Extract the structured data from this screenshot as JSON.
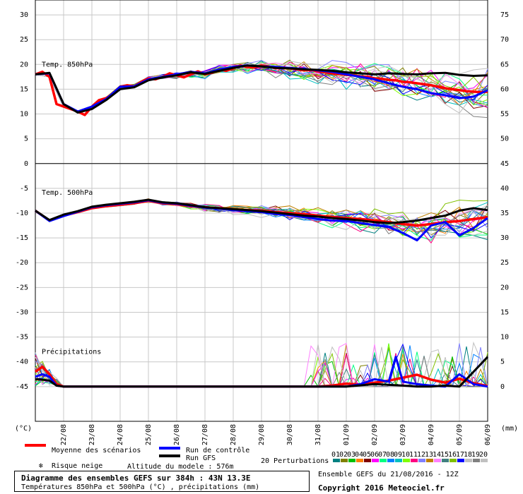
{
  "chart_data": {
    "type": "line",
    "title": "Diagramme des ensembles GEFS sur 384h : 43N 13.3E",
    "subtitle": "Températures 850hPa et 500hPa (°C) , précipitations (mm)",
    "x_tick_labels": [
      "22/08",
      "23/08",
      "24/08",
      "25/08",
      "26/08",
      "27/08",
      "28/08",
      "29/08",
      "30/08",
      "31/08",
      "01/09",
      "02/09",
      "03/09",
      "04/09",
      "05/09",
      "06/09"
    ],
    "x_range_days": [
      0,
      16
    ],
    "left_axis": {
      "unit_label": "(°C)",
      "ticks": [
        30,
        25,
        20,
        15,
        10,
        5,
        0,
        -5,
        -10,
        -15,
        -20,
        -25,
        -30,
        -35,
        -40,
        -45
      ],
      "range": [
        -52,
        33
      ]
    },
    "right_axis_850": {
      "ticks": [
        75,
        70,
        65,
        60,
        55,
        50
      ]
    },
    "right_axis_500": {
      "ticks": [
        45,
        40,
        35,
        30,
        25,
        20,
        15,
        10,
        5,
        0
      ]
    },
    "right_unit_label": "(mm)",
    "panels": [
      {
        "id": "t850",
        "label": "Temp. 850hPa",
        "range": [
          0,
          33
        ]
      },
      {
        "id": "t500",
        "label": "Temp. 500hPa",
        "range": [
          -33,
          0
        ]
      },
      {
        "id": "precip",
        "label": "Précipitations",
        "baseline": -45
      }
    ],
    "series": [
      {
        "name": "Moyenne des scénarios",
        "panel": "t850",
        "color": "#ff0000",
        "x": [
          0,
          0.25,
          0.5,
          0.75,
          1,
          1.25,
          1.5,
          1.75,
          2,
          2.25,
          2.5,
          2.75,
          3,
          3.25,
          3.5,
          3.75,
          4,
          4.25,
          4.5,
          4.75,
          5,
          5.25,
          5.5,
          5.75,
          6,
          6.25,
          6.5,
          6.75,
          7,
          7.25,
          7.5,
          7.75,
          8,
          8.25,
          8.5,
          8.75,
          9,
          9.25,
          9.5,
          9.75,
          10,
          10.25,
          10.5,
          10.75,
          11,
          11.25,
          11.5,
          11.75,
          12,
          12.25,
          12.5,
          12.75,
          13,
          13.25,
          13.5,
          13.75,
          14,
          14.25,
          14.5,
          14.75,
          15,
          15.25,
          15.5,
          15.75,
          16
        ],
        "y": [
          18,
          18.5,
          17.5,
          12,
          11.5,
          11,
          10.5,
          9.8,
          11.5,
          12.8,
          13.2,
          14,
          15.5,
          15.8,
          15.6,
          16.5,
          17.2,
          17,
          17.5,
          18.2,
          17.8,
          17.4,
          18,
          18.6,
          18,
          18.3,
          19,
          18.7,
          19.2,
          19.8,
          19.5,
          19.4,
          19.8,
          19.6,
          19.2,
          19.4,
          19.2,
          19,
          18.8,
          18.9,
          18.6,
          18.4,
          18.2,
          18.1,
          17.9,
          17.8,
          17.6,
          17.5,
          17.2,
          17.1,
          16.9,
          16.8,
          16.5,
          16.4,
          16.2,
          16,
          15.8,
          15.5,
          15.2,
          15,
          14.8,
          14.6,
          14.5,
          14.4,
          14.5
        ]
      },
      {
        "name": "Run de contrôle",
        "panel": "t850",
        "color": "#0000ff",
        "x": [
          0,
          0.5,
          1,
          1.5,
          2,
          2.5,
          3,
          3.5,
          4,
          4.5,
          5,
          5.5,
          6,
          6.5,
          7,
          7.5,
          8,
          8.5,
          9,
          9.5,
          10,
          10.5,
          11,
          11.5,
          12,
          12.5,
          13,
          13.5,
          14,
          14.5,
          15,
          15.5,
          16
        ],
        "y": [
          18,
          18.2,
          12,
          10.5,
          11.5,
          13,
          15.5,
          15.6,
          17,
          17.5,
          18,
          18.5,
          18.2,
          19,
          19.5,
          19.8,
          19.6,
          19.5,
          19.3,
          19.1,
          18.8,
          18.5,
          18,
          17.5,
          17,
          16.2,
          15.5,
          15,
          14.2,
          13.8,
          13.2,
          13.5,
          14.8
        ]
      },
      {
        "name": "Run GFS",
        "panel": "t850",
        "color": "#000000",
        "x": [
          0,
          0.5,
          1,
          1.5,
          2,
          2.5,
          3,
          3.5,
          4,
          4.5,
          5,
          5.5,
          6,
          6.5,
          7,
          7.5,
          8,
          8.5,
          9,
          9.5,
          10,
          10.5,
          11,
          11.5,
          12,
          12.5,
          13,
          13.5,
          14,
          14.5,
          15,
          15.5,
          16
        ],
        "y": [
          18,
          18.3,
          12,
          10.3,
          11,
          12.8,
          15,
          15.4,
          16.8,
          17.4,
          17.8,
          18.4,
          18.1,
          18.7,
          19.3,
          19.8,
          19.6,
          19.3,
          19.2,
          19,
          18.9,
          18.7,
          18.4,
          18.2,
          18,
          18.2,
          18.1,
          18,
          18.2,
          18.3,
          17.9,
          17.7,
          17.8
        ]
      },
      {
        "name": "Moyenne des scénarios 500",
        "panel": "t500",
        "color": "#ff0000",
        "x": [
          0,
          0.5,
          1,
          1.5,
          2,
          2.5,
          3,
          3.5,
          4,
          4.5,
          5,
          5.5,
          6,
          6.5,
          7,
          7.5,
          8,
          8.5,
          9,
          9.5,
          10,
          10.5,
          11,
          11.5,
          12,
          12.5,
          13,
          13.5,
          14,
          14.5,
          15,
          15.5,
          16
        ],
        "y": [
          -9.5,
          -11.5,
          -10.5,
          -9.8,
          -9,
          -8.6,
          -8.3,
          -8,
          -7.5,
          -8,
          -8.2,
          -8.6,
          -8.8,
          -9,
          -9.2,
          -9.4,
          -9.5,
          -9.8,
          -10,
          -10.2,
          -10.5,
          -10.8,
          -11,
          -11.2,
          -11.5,
          -11.8,
          -12.2,
          -12.5,
          -12.2,
          -11.8,
          -11.6,
          -11.2,
          -10.8
        ]
      },
      {
        "name": "Run de contrôle 500",
        "panel": "t500",
        "color": "#0000ff",
        "x": [
          0,
          0.5,
          1,
          1.5,
          2,
          2.5,
          3,
          3.5,
          4,
          4.5,
          5,
          5.5,
          6,
          6.5,
          7,
          7.5,
          8,
          8.5,
          9,
          9.5,
          10,
          10.5,
          11,
          11.5,
          12,
          12.5,
          13,
          13.5,
          14,
          14.5,
          15,
          15.5,
          16
        ],
        "y": [
          -9.5,
          -11.6,
          -10.6,
          -9.7,
          -8.8,
          -8.4,
          -8.1,
          -7.8,
          -7.4,
          -7.9,
          -8.1,
          -8.5,
          -8.9,
          -9.1,
          -9.4,
          -9.6,
          -9.8,
          -10.2,
          -10.4,
          -10.8,
          -11.2,
          -11.5,
          -11.6,
          -12,
          -12.4,
          -12.8,
          -14,
          -15.5,
          -12.5,
          -11.8,
          -14.5,
          -13,
          -11
        ]
      },
      {
        "name": "Run GFS 500",
        "panel": "t500",
        "color": "#000000",
        "x": [
          0,
          0.5,
          1,
          1.5,
          2,
          2.5,
          3,
          3.5,
          4,
          4.5,
          5,
          5.5,
          6,
          6.5,
          7,
          7.5,
          8,
          8.5,
          9,
          9.5,
          10,
          10.5,
          11,
          11.5,
          12,
          12.5,
          13,
          13.5,
          14,
          14.5,
          15,
          15.5,
          16
        ],
        "y": [
          -9.5,
          -11.4,
          -10.3,
          -9.6,
          -8.7,
          -8.3,
          -8,
          -7.7,
          -7.3,
          -7.8,
          -8,
          -8.4,
          -8.8,
          -9,
          -9.2,
          -9.4,
          -9.6,
          -9.9,
          -10.2,
          -10.5,
          -10.7,
          -11,
          -11.2,
          -11.5,
          -11.8,
          -12,
          -11.8,
          -11.5,
          -11,
          -10.5,
          -9.5,
          -9,
          -9.4
        ]
      },
      {
        "name": "Moyenne des scénarios précip",
        "panel": "precip",
        "color": "#ff0000",
        "x": [
          0,
          0.25,
          0.5,
          0.75,
          1,
          1.5,
          2,
          2.5,
          3,
          4,
          5,
          6,
          7,
          8,
          9,
          10,
          10.5,
          11,
          11.5,
          12,
          12.5,
          13,
          13.5,
          14,
          14.5,
          15,
          15.5,
          16
        ],
        "y": [
          -42,
          -41,
          -42.5,
          -44.5,
          -45,
          -45,
          -45,
          -45,
          -45,
          -45,
          -45,
          -45,
          -45,
          -45,
          -45,
          -45,
          -44.8,
          -44.4,
          -44.6,
          -44.2,
          -43.8,
          -43.2,
          -42.6,
          -43.6,
          -44.2,
          -43.4,
          -44.3,
          -44.9
        ]
      },
      {
        "name": "Run de contrôle précip",
        "panel": "precip",
        "color": "#0000ff",
        "x": [
          0,
          0.25,
          0.5,
          0.75,
          1,
          1.5,
          2,
          3,
          4,
          5,
          6,
          7,
          8,
          9,
          10,
          10.5,
          11,
          11.5,
          12,
          12.5,
          12.75,
          13,
          13.5,
          14,
          14.5,
          15,
          15.5,
          16
        ],
        "y": [
          -43,
          -42.5,
          -43,
          -44.8,
          -45,
          -45,
          -45,
          -45,
          -45,
          -45,
          -45,
          -45,
          -45,
          -45,
          -45,
          -45,
          -45,
          -44.5,
          -43.5,
          -44,
          -39,
          -44,
          -44.5,
          -44.8,
          -45,
          -42.5,
          -44.5,
          -45
        ]
      },
      {
        "name": "Run GFS précip",
        "panel": "precip",
        "color": "#000000",
        "x": [
          0,
          0.25,
          0.5,
          0.75,
          1,
          1.5,
          2,
          3,
          4,
          5,
          6,
          7,
          8,
          9,
          10,
          11,
          12,
          13,
          13.5,
          14,
          14.5,
          15,
          15.5,
          16
        ],
        "y": [
          -43.5,
          -43.6,
          -43.8,
          -44.8,
          -45,
          -45,
          -45,
          -45,
          -45,
          -45,
          -45,
          -45,
          -45,
          -45,
          -45,
          -45,
          -44.5,
          -44.8,
          -45,
          -45,
          -44.8,
          -45,
          -42,
          -39
        ]
      }
    ],
    "legend": {
      "mean": "Moyenne des scénarios",
      "control": "Run de contrôle",
      "gfs": "Run GFS",
      "perturbations": "20 Perturbations",
      "snow": "Risque neige",
      "altitude": "Altitude du modele : 576m",
      "ensemble": "Ensemble GEFS du 21/08/2016 - 12Z",
      "copyright": "Copyright 2016 Meteociel.fr"
    },
    "perturbation_colors": [
      "#008080",
      "#808000",
      "#00c000",
      "#ff8000",
      "#800000",
      "#ff00ff",
      "#00ff80",
      "#0080ff",
      "#00c0c0",
      "#80ff00",
      "#ff0080",
      "#8080ff",
      "#c08000",
      "#ff80ff",
      "#408080",
      "#80c000",
      "#0000ff",
      "#c0c0c0",
      "#808080",
      "#c0c0c0"
    ],
    "perturbation_numbers": [
      "01",
      "02",
      "03",
      "04",
      "05",
      "06",
      "07",
      "08",
      "09",
      "10",
      "11",
      "12",
      "13",
      "14",
      "15",
      "16",
      "17",
      "18",
      "19",
      "20"
    ]
  }
}
